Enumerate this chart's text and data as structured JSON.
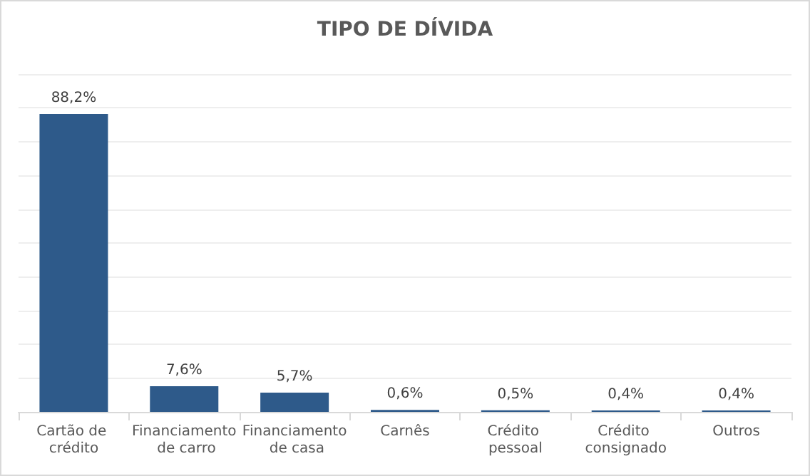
{
  "chart_data": {
    "type": "bar",
    "title": "TIPO DE DÍVIDA",
    "categories": [
      "Cartão de crédito",
      "Financiamento de carro",
      "Financiamento de casa",
      "Carnês",
      "Crédito pessoal",
      "Crédito consignado",
      "Outros"
    ],
    "values": [
      88.2,
      7.6,
      5.7,
      0.6,
      0.5,
      0.4,
      0.4
    ],
    "value_labels": [
      "88,2%",
      "7,6%",
      "5,7%",
      "0,6%",
      "0,5%",
      "0,4%",
      "0,4%"
    ],
    "color": "#2e5a8a",
    "ylim": [
      0,
      100
    ],
    "yticks": [
      {
        "value": 0,
        "label": null
      },
      {
        "value": 10,
        "label": null
      },
      {
        "value": 20,
        "label": null
      },
      {
        "value": 30,
        "label": null
      },
      {
        "value": 40,
        "label": null
      },
      {
        "value": 50,
        "label": null
      },
      {
        "value": 60,
        "label": null
      },
      {
        "value": 70,
        "label": null
      },
      {
        "value": 80,
        "label": null
      },
      {
        "value": 90,
        "label": null
      },
      {
        "value": 100,
        "label": null
      }
    ],
    "grid": "y",
    "tick_labels": "x"
  }
}
